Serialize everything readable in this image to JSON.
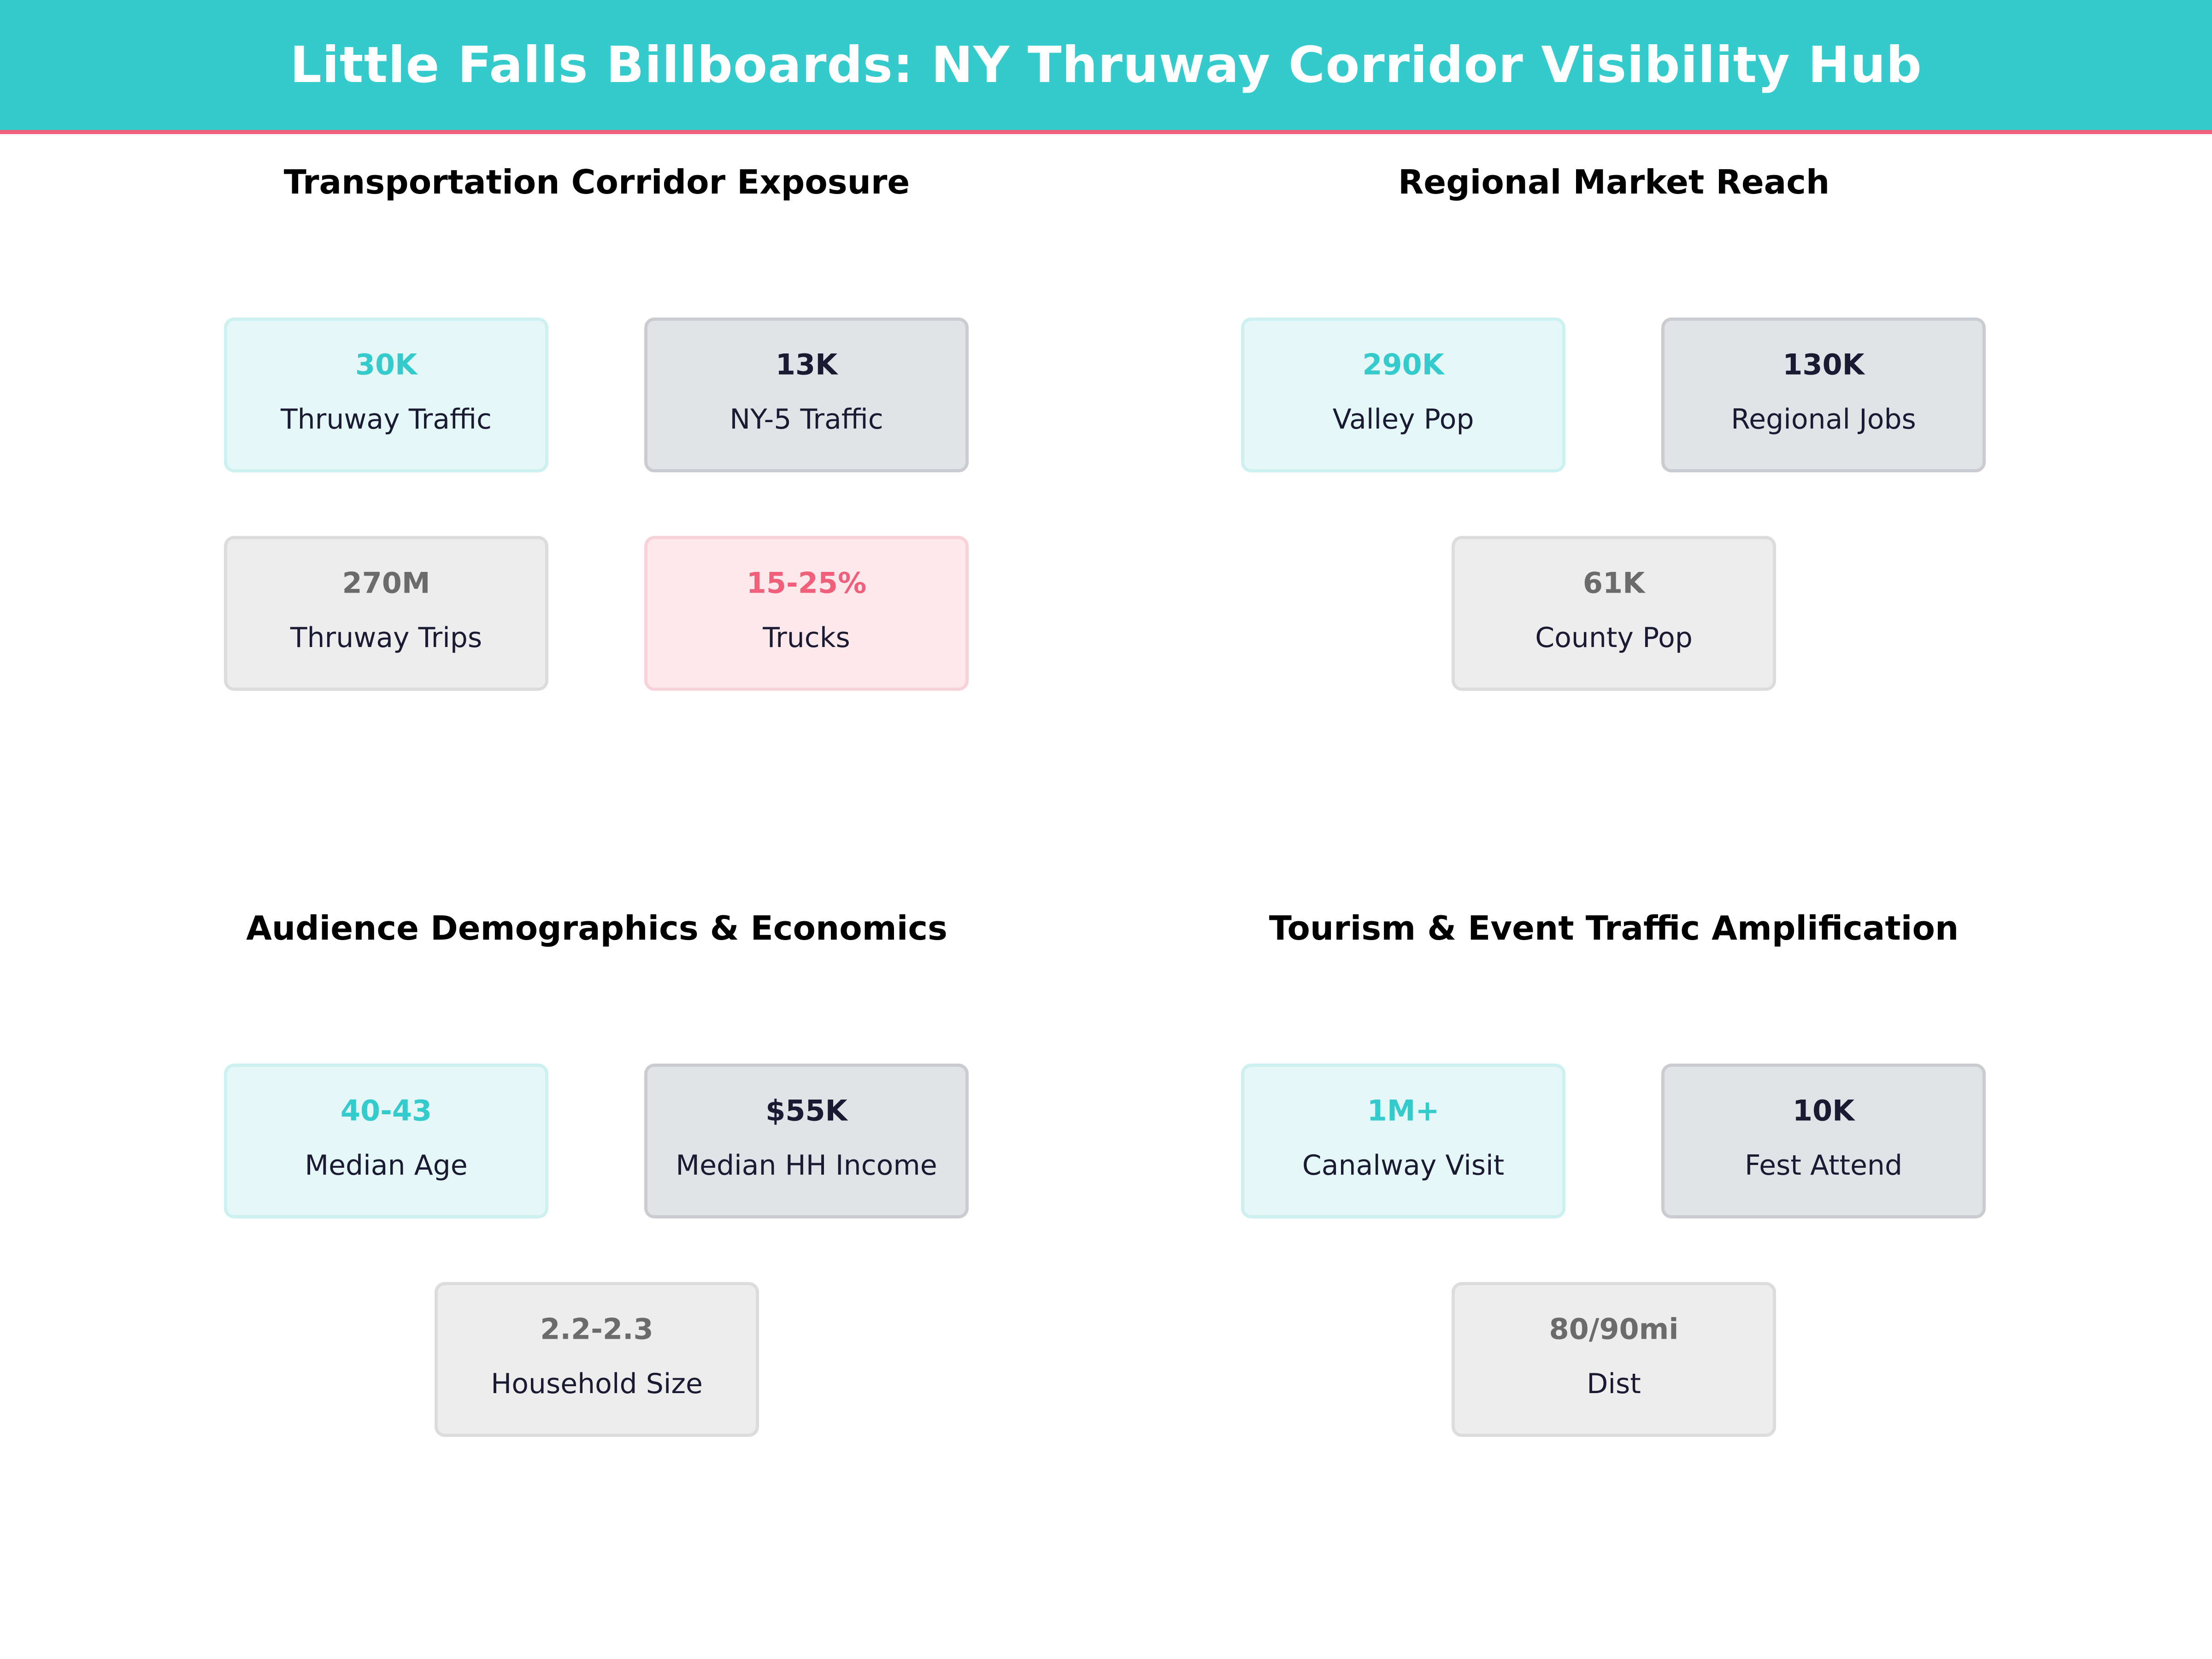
{
  "header": {
    "title": "Little Falls Billboards: NY Thruway Corridor Visibility Hub"
  },
  "colors": {
    "teal": "#35cbcc",
    "pink": "#f0607a",
    "navy": "#1a1a33",
    "gray": "#6b6b6b"
  },
  "panels": [
    {
      "title": "Transportation Corridor Exposure",
      "cards": [
        {
          "value": "30K",
          "label": "Thruway Traffic",
          "style": "teal"
        },
        {
          "value": "13K",
          "label": "NY-5 Traffic",
          "style": "navy"
        },
        {
          "value": "270M",
          "label": "Thruway Trips",
          "style": "gray"
        },
        {
          "value": "15-25%",
          "label": "Trucks",
          "style": "pink"
        }
      ]
    },
    {
      "title": "Regional Market Reach",
      "cards": [
        {
          "value": "290K",
          "label": "Valley Pop",
          "style": "teal"
        },
        {
          "value": "130K",
          "label": "Regional Jobs",
          "style": "navy"
        },
        {
          "value": "61K",
          "label": "County Pop",
          "style": "gray"
        }
      ]
    },
    {
      "title": "Audience Demographics & Economics",
      "cards": [
        {
          "value": "40-43",
          "label": "Median Age",
          "style": "teal"
        },
        {
          "value": "$55K",
          "label": "Median HH Income",
          "style": "navy"
        },
        {
          "value": "2.2-2.3",
          "label": "Household Size",
          "style": "gray"
        }
      ]
    },
    {
      "title": "Tourism & Event Traffic Amplification",
      "cards": [
        {
          "value": "1M+",
          "label": "Canalway Visit",
          "style": "teal"
        },
        {
          "value": "10K",
          "label": "Fest Attend",
          "style": "navy"
        },
        {
          "value": "80/90mi",
          "label": "Dist",
          "style": "gray"
        }
      ]
    }
  ]
}
